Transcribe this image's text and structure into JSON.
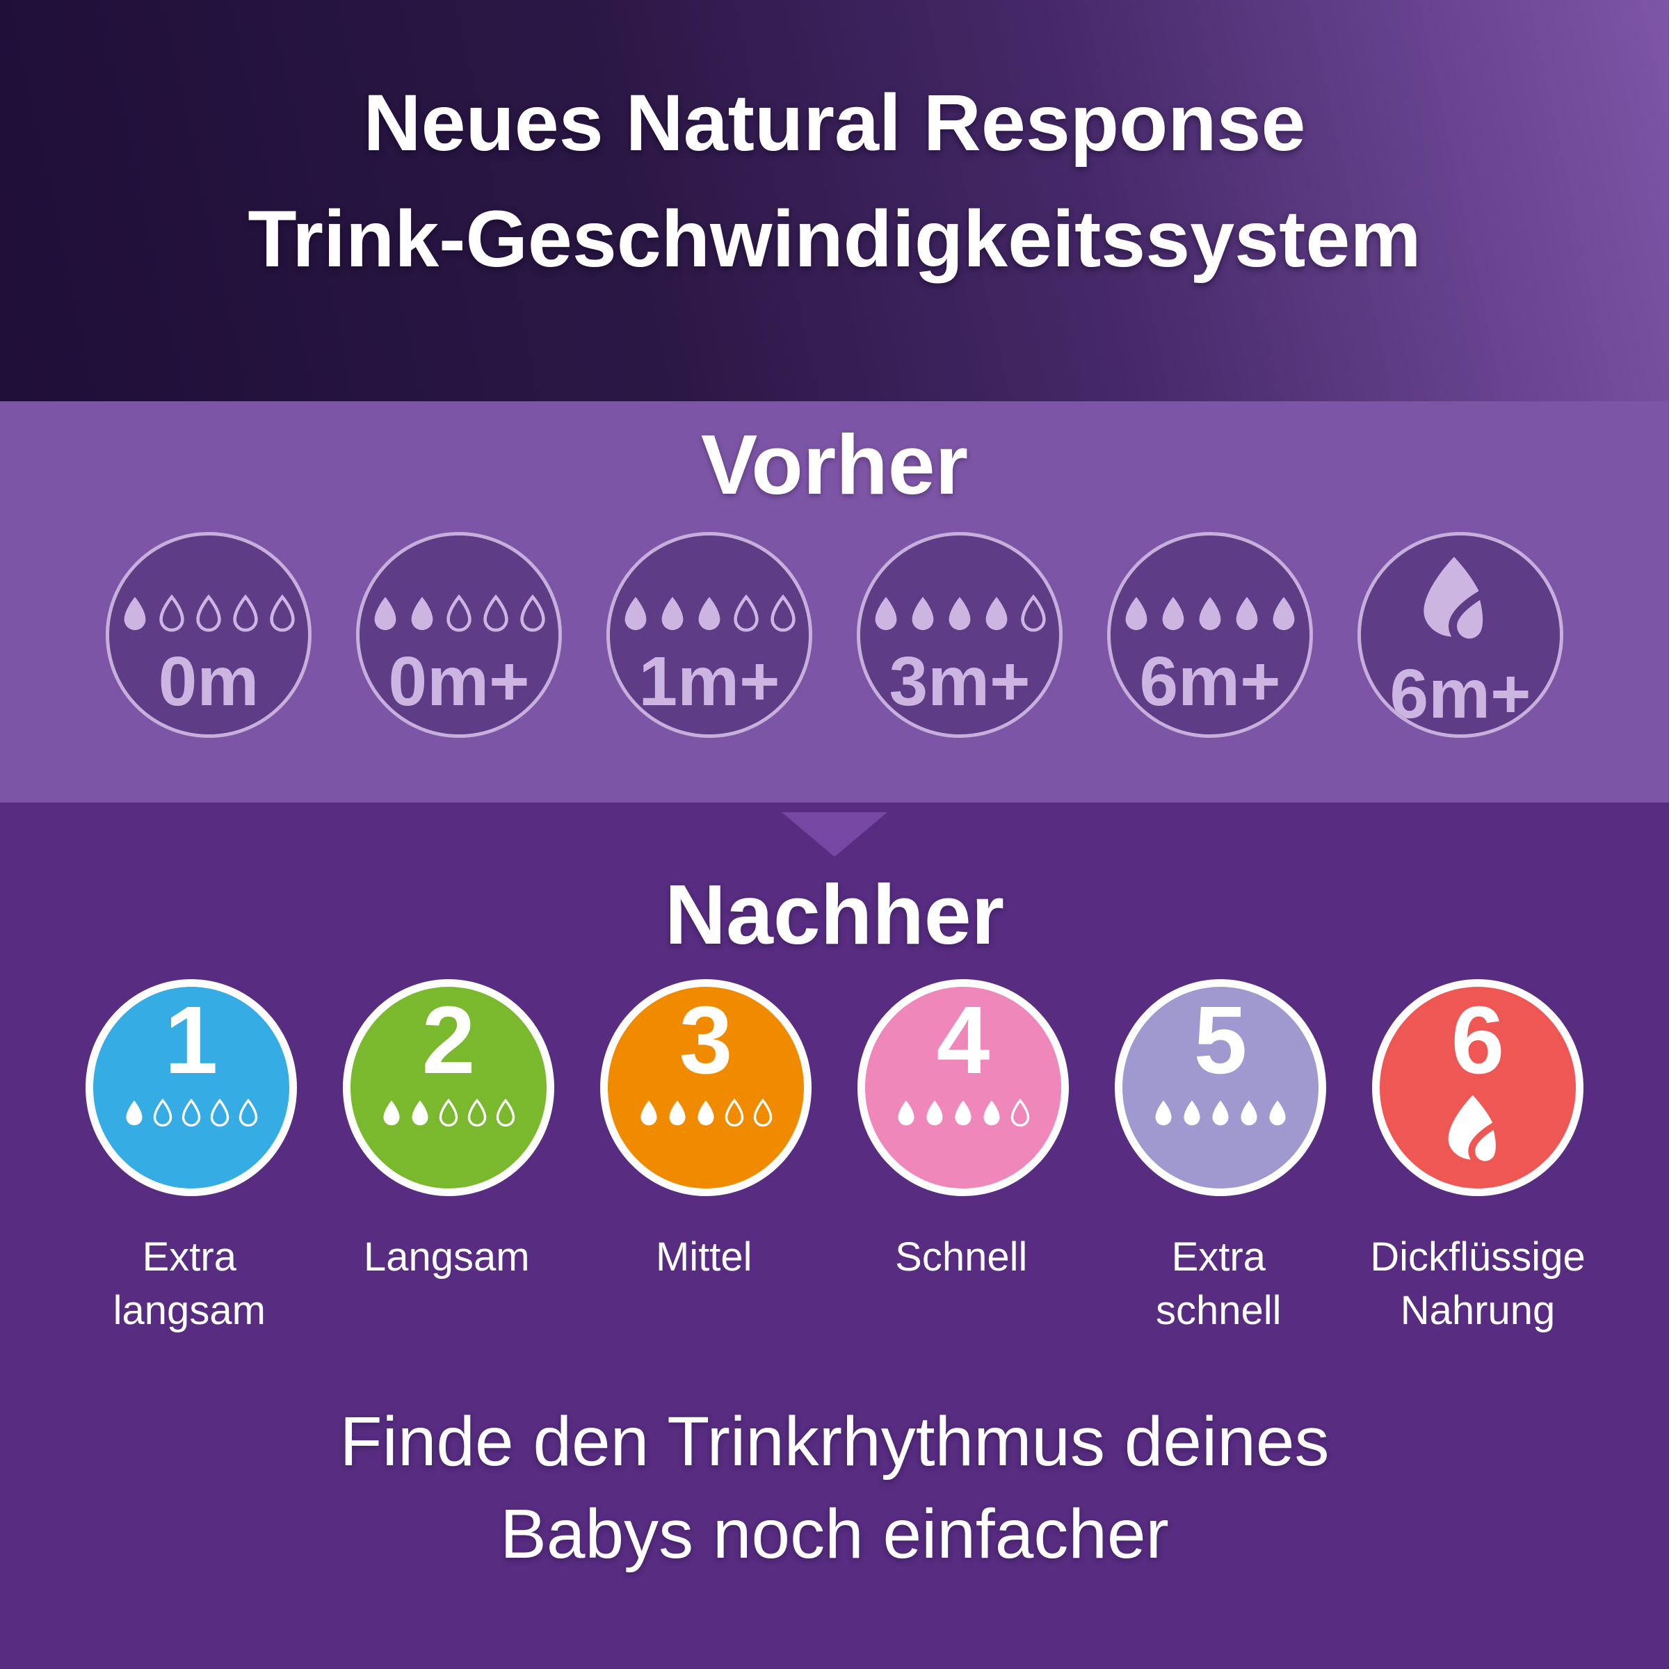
{
  "header": {
    "title_line1": "Neues Natural Response",
    "title_line2": "Trink-Geschwindigkeitssystem"
  },
  "before": {
    "heading": "Vorher",
    "drops_total": 5,
    "items": [
      {
        "label": "0m",
        "drops_filled": 1
      },
      {
        "label": "0m+",
        "drops_filled": 2
      },
      {
        "label": "1m+",
        "drops_filled": 3
      },
      {
        "label": "3m+",
        "drops_filled": 4
      },
      {
        "label": "6m+",
        "drops_filled": 5
      },
      {
        "label": "6m+",
        "icon": "thick-feed-droplet-icon"
      }
    ]
  },
  "after": {
    "heading": "Nachher",
    "drops_total": 5,
    "items": [
      {
        "number": "1",
        "color": "#35ace3",
        "drops_filled": 1,
        "label": "Extra\nlangsam"
      },
      {
        "number": "2",
        "color": "#7ab92d",
        "drops_filled": 2,
        "label": "Langsam"
      },
      {
        "number": "3",
        "color": "#f08b00",
        "drops_filled": 3,
        "label": "Mittel"
      },
      {
        "number": "4",
        "color": "#f087ba",
        "drops_filled": 4,
        "label": "Schnell"
      },
      {
        "number": "5",
        "color": "#9f99d0",
        "drops_filled": 5,
        "label": "Extra\nschnell"
      },
      {
        "number": "6",
        "color": "#ee5753",
        "icon": "thick-feed-droplet-icon",
        "label": "Dickflüssige\nNahrung"
      }
    ]
  },
  "footer": {
    "line1": "Finde den Trinkrhythmus deines",
    "line2": "Babys noch einfacher"
  },
  "icons": {
    "divider": "arrow-down-icon",
    "flow": "droplet-icon",
    "thick_feed": "thick-feed-droplet-icon"
  },
  "colors": {
    "band_purple": "#7d55a6",
    "dark_purple": "#572c81",
    "before_circle_fill": "#5e3c86",
    "before_circle_ring": "#c7afdc",
    "before_accent_lavender": "#cdb5e2",
    "arrow_purple": "#7648a4"
  }
}
